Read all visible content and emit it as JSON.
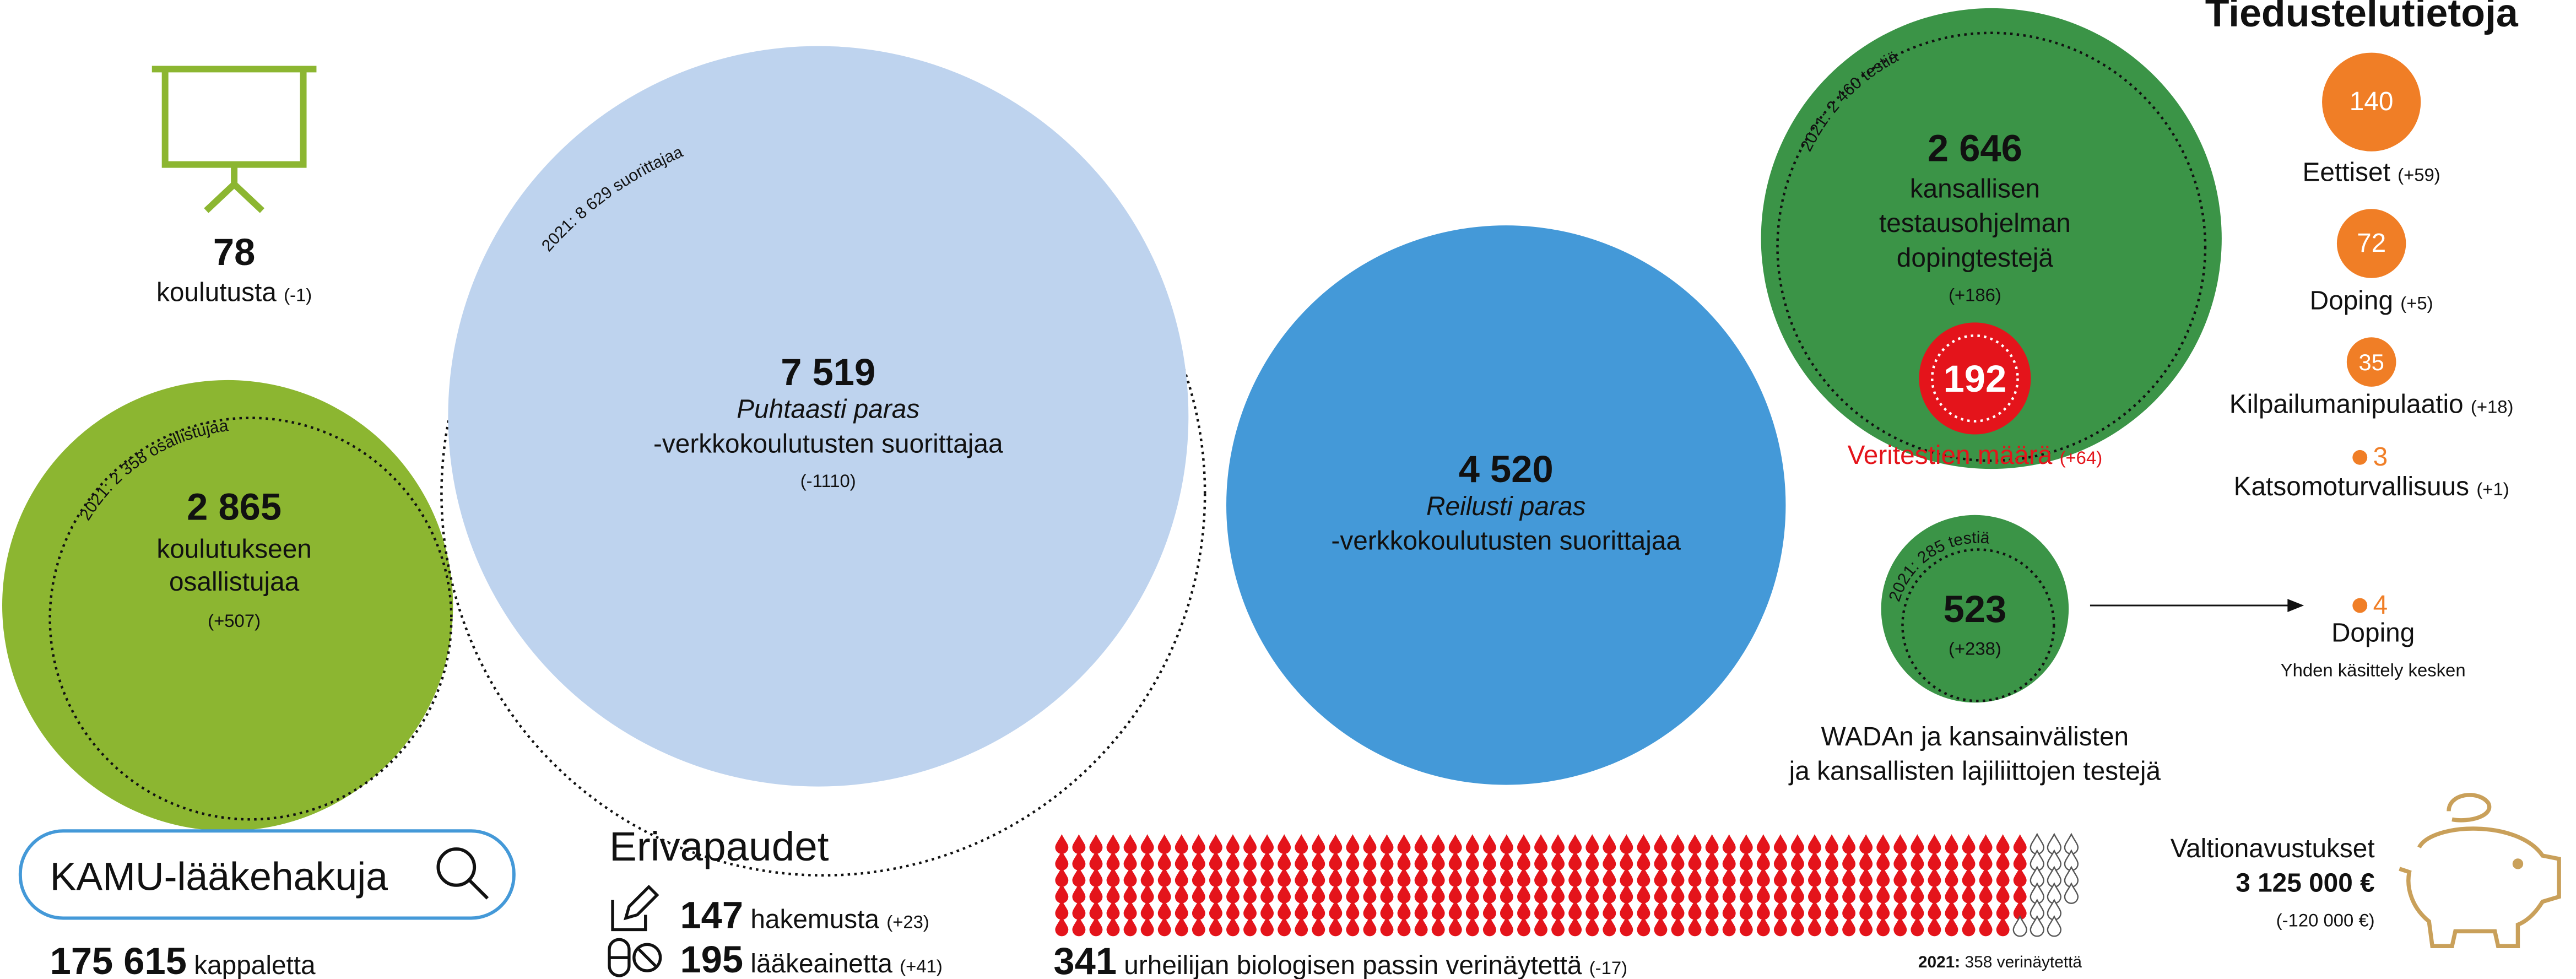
{
  "trainings": {
    "value": 78,
    "label": "koulutusta",
    "change": "(-1)"
  },
  "participants": {
    "previous": "2021: 2 358 osallistujaa",
    "value": "2 865",
    "label_lines": [
      "koulutukseen",
      "osallistujaa"
    ],
    "change": "(+507)"
  },
  "clean_course": {
    "previous": "2021: 8 629 suorittajaa",
    "value": "7 519",
    "name": "Puhtaasti paras",
    "label": "-verkkokoulutusten suorittajaa",
    "change": "(-1110)"
  },
  "fair_course": {
    "value": "4 520",
    "name": "Reilusti paras",
    "label": "-verkkokoulutusten suorittajaa"
  },
  "national_tests": {
    "previous": "2021: 2 460 testiä",
    "value": "2 646",
    "label_lines": [
      "kansallisen",
      "testausohjelman",
      "dopingtestejä"
    ],
    "change": "(+186)",
    "blood_tests": {
      "value": 192,
      "label": "Veritestien määrä",
      "change": "(+64)"
    }
  },
  "wada_tests": {
    "previous": "2021: 285 testiä",
    "value": 523,
    "change": "(+238)",
    "label_lines": [
      "WADAn ja kansainvälisten",
      "ja kansallisten lajiliittojen testejä"
    ],
    "pending": {
      "value": 4,
      "label": "Doping",
      "note": "Yhden käsittely kesken"
    }
  },
  "intelligence": {
    "title": "Tiedustelutietoja",
    "items": [
      {
        "value": 140,
        "label": "Eettiset",
        "change": "(+59)"
      },
      {
        "value": 72,
        "label": "Doping",
        "change": "(+5)"
      },
      {
        "value": 35,
        "label": "Kilpailumanipulaatio",
        "change": "(+18)"
      },
      {
        "value": 3,
        "label": "Katsomoturvallisuus",
        "change": "(+1)"
      }
    ]
  },
  "kamu": {
    "title": "KAMU-lääkehakuja",
    "value": "175 615",
    "unit": "kappaletta"
  },
  "exemptions": {
    "title": "Erivapaudet",
    "items": [
      {
        "value": 147,
        "label": "hakemusta",
        "change": "(+23)"
      },
      {
        "value": 195,
        "label": "lääkeainetta",
        "change": "(+41)"
      }
    ]
  },
  "blood_passport": {
    "value": 341,
    "label": "urheilijan biologisen passin verinäytettä",
    "change": "(-17)",
    "previous_prefix": "2021:",
    "previous_value": 358,
    "previous_label": "verinäytettä"
  },
  "grants": {
    "title": "Valtionavustukset",
    "value": "3 125 000 €",
    "change": "(-120 000 €)"
  }
}
